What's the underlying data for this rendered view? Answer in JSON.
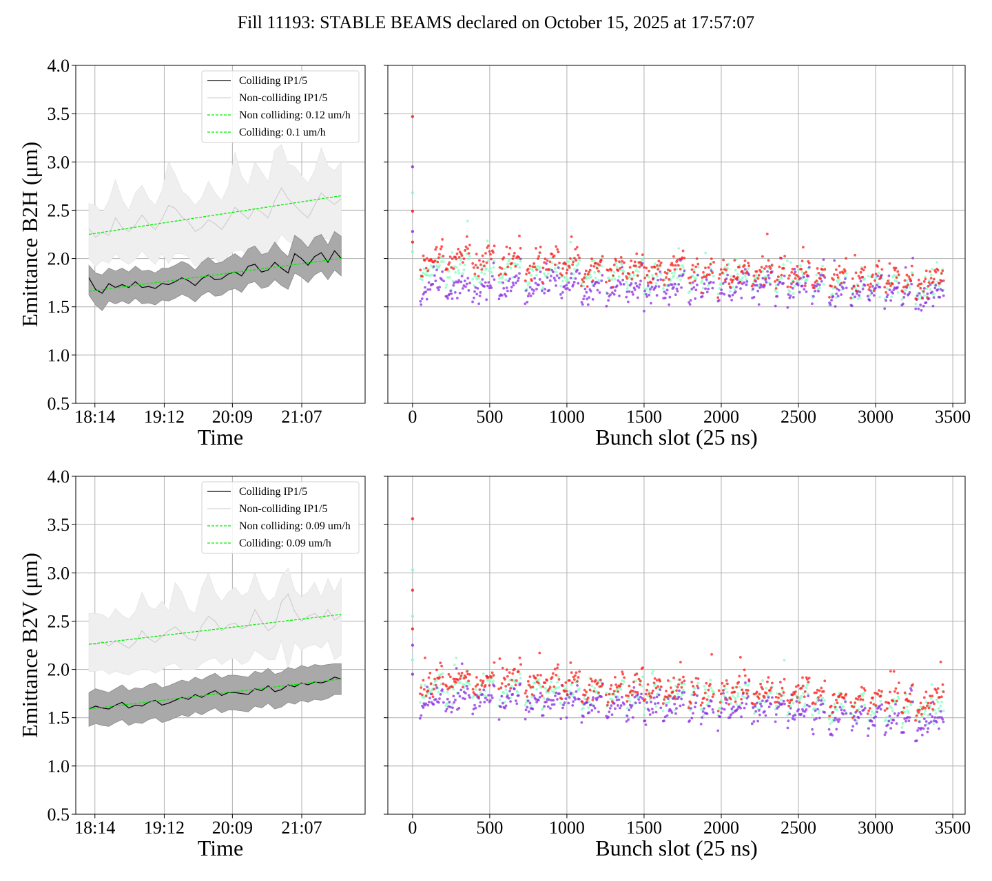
{
  "figure": {
    "title": "Fill 11193: STABLE BEAMS declared on October 15, 2025 at 17:57:07"
  },
  "colors": {
    "colliding": "#000000",
    "noncolliding": "#c8c8c8",
    "band_colliding": "#a9a9a9",
    "band_noncolliding": "#efefef",
    "fit": "#00ee00",
    "bunch_series": [
      "#8a2be2",
      "#7fffbf",
      "#ff1a1a"
    ]
  },
  "chart_data": [
    {
      "id": "time-h",
      "type": "line",
      "xlabel": "Time",
      "ylabel": "Emittance B2H (μm)",
      "ylim": [
        0.5,
        4.0
      ],
      "yticks": [
        "0.5",
        "1.0",
        "1.5",
        "2.0",
        "2.5",
        "3.0",
        "3.5",
        "4.0"
      ],
      "xlim_minutes": [
        0,
        242
      ],
      "xticks": [
        {
          "min": 16,
          "label": "18:14"
        },
        {
          "min": 74,
          "label": "19:12"
        },
        {
          "min": 131,
          "label": "20:09"
        },
        {
          "min": 189,
          "label": "21:07"
        }
      ],
      "grid": true,
      "legend_position": "top-right",
      "legend": [
        "Colliding IP1/5",
        "Non-colliding IP1/5",
        "Non colliding: 0.12 um/h",
        "Colliding: 0.1 um/h"
      ],
      "x_start_min": 11,
      "x_end_min": 222,
      "noncolliding_mean": [
        2.31,
        2.22,
        2.27,
        2.24,
        2.42,
        2.32,
        2.28,
        2.35,
        2.45,
        2.36,
        2.3,
        2.41,
        2.55,
        2.52,
        2.43,
        2.38,
        2.28,
        2.32,
        2.4,
        2.36,
        2.3,
        2.4,
        2.53,
        2.47,
        2.41,
        2.52,
        2.48,
        2.42,
        2.6,
        2.73,
        2.62,
        2.55,
        2.48,
        2.42,
        2.55,
        2.68,
        2.61,
        2.56,
        2.62
      ],
      "noncolliding_upper": [
        2.57,
        2.55,
        2.47,
        2.6,
        2.82,
        2.61,
        2.5,
        2.68,
        2.76,
        2.62,
        2.55,
        2.7,
        3.0,
        2.87,
        2.7,
        2.64,
        2.55,
        2.63,
        2.8,
        2.68,
        2.6,
        2.75,
        3.1,
        2.85,
        2.76,
        3.0,
        2.9,
        2.79,
        3.12,
        3.18,
        2.98,
        2.95,
        2.86,
        2.78,
        2.91,
        3.15,
        2.96,
        2.91,
        3.0
      ],
      "noncolliding_lower": [
        2.0,
        1.92,
        1.98,
        1.95,
        2.05,
        1.98,
        1.94,
        1.99,
        2.08,
        2.0,
        1.94,
        2.05,
        1.95,
        2.05,
        2.05,
        2.02,
        1.92,
        1.97,
        2.02,
        2.0,
        1.94,
        2.03,
        2.08,
        2.09,
        2.03,
        2.06,
        2.05,
        2.03,
        2.13,
        2.25,
        2.18,
        2.14,
        2.11,
        2.06,
        2.15,
        2.22,
        2.2,
        2.18,
        2.22
      ],
      "colliding_mean": [
        1.8,
        1.68,
        1.64,
        1.74,
        1.7,
        1.73,
        1.7,
        1.76,
        1.7,
        1.71,
        1.69,
        1.74,
        1.73,
        1.76,
        1.8,
        1.77,
        1.72,
        1.79,
        1.83,
        1.78,
        1.79,
        1.84,
        1.86,
        1.82,
        1.92,
        1.94,
        1.86,
        1.88,
        1.96,
        1.9,
        1.85,
        2.05,
        2.0,
        1.93,
        2.02,
        2.06,
        1.96,
        2.08,
        2.0
      ],
      "colliding_upper": [
        1.93,
        1.85,
        1.83,
        1.9,
        1.87,
        1.9,
        1.86,
        1.92,
        1.87,
        1.88,
        1.85,
        1.9,
        1.9,
        1.93,
        1.97,
        1.94,
        1.88,
        1.96,
        2.01,
        1.95,
        1.96,
        2.01,
        2.05,
        2.0,
        2.1,
        2.13,
        2.04,
        2.06,
        2.17,
        2.08,
        2.02,
        2.24,
        2.19,
        2.11,
        2.22,
        2.25,
        2.14,
        2.28,
        2.23
      ],
      "colliding_lower": [
        1.62,
        1.52,
        1.46,
        1.56,
        1.53,
        1.56,
        1.53,
        1.59,
        1.53,
        1.54,
        1.52,
        1.57,
        1.56,
        1.59,
        1.63,
        1.6,
        1.55,
        1.62,
        1.66,
        1.61,
        1.62,
        1.67,
        1.69,
        1.65,
        1.74,
        1.76,
        1.69,
        1.71,
        1.78,
        1.72,
        1.68,
        1.85,
        1.81,
        1.75,
        1.83,
        1.87,
        1.78,
        1.88,
        1.82
      ],
      "fit_noncolliding": [
        2.25,
        2.65
      ],
      "fit_colliding": [
        1.66,
        2.0
      ]
    },
    {
      "id": "bunch-h",
      "type": "scatter",
      "xlabel": "Bunch slot (25 ns)",
      "ylim": [
        0.5,
        4.0
      ],
      "xlim": [
        -160,
        3580
      ],
      "xticks": [
        0,
        500,
        1000,
        1500,
        2000,
        2500,
        3000,
        3500
      ],
      "grid": true,
      "trains": [
        [
          50,
          200
        ],
        [
          215,
          370
        ],
        [
          390,
          530
        ],
        [
          560,
          700
        ],
        [
          730,
          830
        ],
        [
          840,
          950
        ],
        [
          960,
          1080
        ],
        [
          1095,
          1230
        ],
        [
          1255,
          1370
        ],
        [
          1385,
          1490
        ],
        [
          1500,
          1610
        ],
        [
          1625,
          1760
        ],
        [
          1790,
          1850
        ],
        [
          1870,
          1950
        ],
        [
          1980,
          2040
        ],
        [
          2050,
          2180
        ],
        [
          2200,
          2330
        ],
        [
          2350,
          2410
        ],
        [
          2430,
          2570
        ],
        [
          2590,
          2670
        ],
        [
          2700,
          2810
        ],
        [
          2840,
          2930
        ],
        [
          2950,
          3040
        ],
        [
          3060,
          3150
        ],
        [
          3170,
          3240
        ],
        [
          3260,
          3440
        ]
      ],
      "pilots": [
        [
          0,
          3.47,
          2
        ],
        [
          0,
          2.95,
          0
        ],
        [
          0,
          2.68,
          1
        ],
        [
          0,
          2.49,
          2
        ],
        [
          0,
          2.28,
          0
        ],
        [
          0,
          2.17,
          2
        ],
        [
          0,
          2.07,
          1
        ]
      ],
      "series_base": [
        [
          1.55,
          1.74,
          1.85
        ],
        [
          1.55,
          1.72,
          1.87
        ],
        [
          1.55,
          1.72,
          1.85
        ],
        [
          1.58,
          1.73,
          1.82
        ],
        [
          1.55,
          1.7,
          1.78
        ],
        [
          1.6,
          1.73,
          1.82
        ],
        [
          1.58,
          1.72,
          1.8
        ],
        [
          1.52,
          1.68,
          1.74
        ],
        [
          1.55,
          1.68,
          1.75
        ],
        [
          1.56,
          1.7,
          1.77
        ],
        [
          1.52,
          1.66,
          1.72
        ],
        [
          1.55,
          1.68,
          1.75
        ],
        [
          1.53,
          1.66,
          1.72
        ],
        [
          1.55,
          1.66,
          1.72
        ],
        [
          1.55,
          1.65,
          1.7
        ],
        [
          1.58,
          1.66,
          1.72
        ],
        [
          1.56,
          1.66,
          1.72
        ],
        [
          1.58,
          1.66,
          1.72
        ],
        [
          1.55,
          1.63,
          1.7
        ],
        [
          1.58,
          1.62,
          1.7
        ],
        [
          1.5,
          1.58,
          1.66
        ],
        [
          1.52,
          1.55,
          1.64
        ],
        [
          1.53,
          1.56,
          1.65
        ],
        [
          1.52,
          1.56,
          1.65
        ],
        [
          1.5,
          1.56,
          1.62
        ],
        [
          1.48,
          1.55,
          1.62
        ]
      ]
    },
    {
      "id": "time-v",
      "type": "line",
      "xlabel": "Time",
      "ylabel": "Emittance B2V (μm)",
      "ylim": [
        0.5,
        4.0
      ],
      "yticks": [
        "0.5",
        "1.0",
        "1.5",
        "2.0",
        "2.5",
        "3.0",
        "3.5",
        "4.0"
      ],
      "xlim_minutes": [
        0,
        242
      ],
      "xticks": [
        {
          "min": 16,
          "label": "18:14"
        },
        {
          "min": 74,
          "label": "19:12"
        },
        {
          "min": 131,
          "label": "20:09"
        },
        {
          "min": 189,
          "label": "21:07"
        }
      ],
      "grid": true,
      "legend_position": "top-right",
      "legend": [
        "Colliding IP1/5",
        "Non-colliding IP1/5",
        "Non colliding: 0.09 um/h",
        "Colliding: 0.09 um/h"
      ],
      "x_start_min": 11,
      "x_end_min": 222,
      "noncolliding_mean": [
        2.27,
        2.26,
        2.29,
        2.24,
        2.3,
        2.26,
        2.22,
        2.28,
        2.4,
        2.32,
        2.28,
        2.34,
        2.4,
        2.44,
        2.38,
        2.32,
        2.3,
        2.45,
        2.55,
        2.5,
        2.4,
        2.46,
        2.48,
        2.42,
        2.45,
        2.62,
        2.5,
        2.4,
        2.45,
        2.7,
        2.78,
        2.6,
        2.5,
        2.55,
        2.58,
        2.52,
        2.62,
        2.51,
        2.56
      ],
      "noncolliding_upper": [
        2.58,
        2.58,
        2.57,
        2.52,
        2.63,
        2.56,
        2.52,
        2.6,
        2.8,
        2.65,
        2.62,
        2.71,
        2.6,
        2.9,
        2.8,
        2.62,
        2.58,
        2.85,
        3.0,
        2.8,
        2.7,
        2.8,
        2.85,
        2.76,
        2.8,
        3.0,
        2.8,
        2.7,
        2.75,
        2.96,
        3.05,
        2.82,
        2.75,
        2.8,
        2.9,
        2.75,
        2.94,
        2.8,
        2.95
      ],
      "noncolliding_lower": [
        1.98,
        1.98,
        2.0,
        1.95,
        1.98,
        1.96,
        1.94,
        1.98,
        2.0,
        2.0,
        1.96,
        2.0,
        2.05,
        2.06,
        2.0,
        2.0,
        2.0,
        2.06,
        2.1,
        2.12,
        2.05,
        2.1,
        2.12,
        2.05,
        2.08,
        2.2,
        2.15,
        2.1,
        2.1,
        2.3,
        2.0,
        2.28,
        2.2,
        2.24,
        2.26,
        2.22,
        2.3,
        2.1,
        2.15
      ],
      "colliding_mean": [
        1.59,
        1.62,
        1.6,
        1.59,
        1.63,
        1.66,
        1.6,
        1.63,
        1.62,
        1.66,
        1.68,
        1.63,
        1.65,
        1.68,
        1.71,
        1.69,
        1.74,
        1.71,
        1.75,
        1.78,
        1.73,
        1.76,
        1.76,
        1.75,
        1.74,
        1.8,
        1.78,
        1.83,
        1.77,
        1.79,
        1.84,
        1.82,
        1.86,
        1.84,
        1.87,
        1.86,
        1.88,
        1.92,
        1.9
      ],
      "colliding_upper": [
        1.76,
        1.8,
        1.78,
        1.76,
        1.8,
        1.84,
        1.78,
        1.81,
        1.8,
        1.84,
        1.86,
        1.81,
        1.83,
        1.86,
        1.89,
        1.87,
        1.92,
        1.89,
        1.93,
        1.96,
        1.91,
        1.94,
        1.94,
        1.93,
        1.92,
        1.98,
        1.96,
        2.01,
        1.95,
        1.97,
        2.02,
        2.0,
        2.04,
        2.02,
        2.05,
        2.04,
        2.05,
        2.06,
        2.06
      ],
      "colliding_lower": [
        1.41,
        1.44,
        1.42,
        1.41,
        1.45,
        1.48,
        1.42,
        1.45,
        1.44,
        1.48,
        1.5,
        1.45,
        1.47,
        1.5,
        1.53,
        1.51,
        1.56,
        1.53,
        1.57,
        1.6,
        1.55,
        1.58,
        1.58,
        1.57,
        1.56,
        1.62,
        1.6,
        1.65,
        1.59,
        1.61,
        1.66,
        1.64,
        1.68,
        1.66,
        1.69,
        1.68,
        1.7,
        1.74,
        1.74
      ],
      "fit_noncolliding": [
        2.26,
        2.57
      ],
      "fit_colliding": [
        1.59,
        1.9
      ]
    },
    {
      "id": "bunch-v",
      "type": "scatter",
      "xlabel": "Bunch slot (25 ns)",
      "ylim": [
        0.5,
        4.0
      ],
      "xlim": [
        -160,
        3580
      ],
      "xticks": [
        0,
        500,
        1000,
        1500,
        2000,
        2500,
        3000,
        3500
      ],
      "grid": true,
      "trains": [
        [
          50,
          200
        ],
        [
          215,
          370
        ],
        [
          390,
          530
        ],
        [
          560,
          700
        ],
        [
          730,
          830
        ],
        [
          840,
          950
        ],
        [
          960,
          1080
        ],
        [
          1095,
          1230
        ],
        [
          1255,
          1370
        ],
        [
          1385,
          1490
        ],
        [
          1500,
          1610
        ],
        [
          1625,
          1760
        ],
        [
          1790,
          1850
        ],
        [
          1870,
          1950
        ],
        [
          1980,
          2040
        ],
        [
          2050,
          2180
        ],
        [
          2200,
          2330
        ],
        [
          2350,
          2410
        ],
        [
          2430,
          2570
        ],
        [
          2590,
          2670
        ],
        [
          2700,
          2810
        ],
        [
          2840,
          2930
        ],
        [
          2950,
          3040
        ],
        [
          3060,
          3150
        ],
        [
          3170,
          3240
        ],
        [
          3260,
          3440
        ]
      ],
      "pilots": [
        [
          0,
          3.56,
          2
        ],
        [
          0,
          3.03,
          1
        ],
        [
          0,
          2.82,
          2
        ],
        [
          0,
          2.55,
          1
        ],
        [
          0,
          2.42,
          2
        ],
        [
          0,
          2.25,
          0
        ],
        [
          0,
          2.1,
          1
        ],
        [
          0,
          1.95,
          0
        ]
      ],
      "series_base": [
        [
          1.52,
          1.64,
          1.72
        ],
        [
          1.55,
          1.66,
          1.75
        ],
        [
          1.55,
          1.66,
          1.74
        ],
        [
          1.55,
          1.66,
          1.76
        ],
        [
          1.52,
          1.62,
          1.7
        ],
        [
          1.52,
          1.63,
          1.72
        ],
        [
          1.52,
          1.63,
          1.72
        ],
        [
          1.48,
          1.6,
          1.66
        ],
        [
          1.48,
          1.6,
          1.67
        ],
        [
          1.48,
          1.6,
          1.68
        ],
        [
          1.45,
          1.58,
          1.64
        ],
        [
          1.48,
          1.58,
          1.66
        ],
        [
          1.46,
          1.56,
          1.62
        ],
        [
          1.44,
          1.55,
          1.62
        ],
        [
          1.46,
          1.55,
          1.62
        ],
        [
          1.48,
          1.57,
          1.66
        ],
        [
          1.45,
          1.55,
          1.63
        ],
        [
          1.45,
          1.55,
          1.62
        ],
        [
          1.42,
          1.54,
          1.62
        ],
        [
          1.4,
          1.5,
          1.58
        ],
        [
          1.35,
          1.45,
          1.54
        ],
        [
          1.36,
          1.45,
          1.55
        ],
        [
          1.36,
          1.45,
          1.55
        ],
        [
          1.34,
          1.45,
          1.55
        ],
        [
          1.33,
          1.44,
          1.54
        ],
        [
          1.3,
          1.44,
          1.54
        ]
      ]
    }
  ]
}
